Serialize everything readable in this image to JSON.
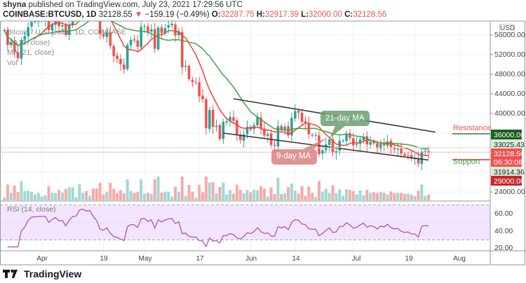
{
  "header": {
    "publisher": "shyna",
    "published_text": "published on TradingView.com, July 23, 2021 17:29:56 UTC",
    "symbol": "COINBASE:BTCUSD, 1D",
    "last": "32128.55",
    "change": "−159.19 (−0.49%)",
    "o_label": "O:",
    "o": "32287.75",
    "h_label": "H:",
    "h": "32917.39",
    "l_label": "L:",
    "l": "32000.00",
    "c_label": "C:",
    "c": "32128.56"
  },
  "legend": {
    "title": "Bitcoin / U.S. Dollar, 1D, COINBASE",
    "ma9": "MA (9, close)",
    "ma21": "MA (21, close)",
    "vol": "Vol"
  },
  "annotations": {
    "ma21": "21-day MA",
    "ma9": "9-day MA",
    "resistance": "Resistance",
    "support": "Support"
  },
  "price_axis": {
    "currency": "USD",
    "ticks": [
      "56000.00",
      "52000.00",
      "48000.00",
      "44000.00",
      "40000.00",
      "24000.00"
    ],
    "badges": {
      "resistance": "36000.00",
      "ma21": "33025.43",
      "last": "32128.56",
      "countdown": "06:30:08",
      "ma9": "31914.36",
      "support": "29000.00"
    }
  },
  "rsi": {
    "label": "RSI (14, close)",
    "ticks": [
      "60.00",
      "40.00",
      "20.00"
    ]
  },
  "time_axis": {
    "ticks": [
      "Apr",
      "19",
      "May",
      "17",
      "Jun",
      "14",
      "Jul",
      "19",
      "Aug"
    ]
  },
  "footer": {
    "brand": "TradingView"
  },
  "colors": {
    "up": "#26a69a",
    "down": "#ef5350",
    "ma9": "#f44336",
    "ma21": "#43a047",
    "rsi": "#ab47bc",
    "rsi_band": "#f3e5fe"
  },
  "chart_data": {
    "type": "candlestick",
    "start_date": "2021-03-21",
    "ylim": [
      22000,
      59000
    ],
    "closes": [
      57000,
      54000,
      54500,
      52500,
      51300,
      55000,
      55800,
      57600,
      58700,
      58800,
      58900,
      59000,
      59000,
      57000,
      58200,
      59000,
      57800,
      58000,
      56000,
      58100,
      59800,
      59900,
      63000,
      63500,
      62900,
      63200,
      61400,
      60000,
      56200,
      55700,
      56500,
      53800,
      51700,
      51100,
      50100,
      49000,
      54000,
      55000,
      54900,
      53600,
      57700,
      57800,
      56600,
      57200,
      53200,
      57500,
      56400,
      57400,
      58000,
      58300,
      55900,
      56700,
      49400,
      49700,
      47000,
      46400,
      46400,
      43500,
      42900,
      37000,
      40700,
      37300,
      37500,
      34800,
      38300,
      38400,
      39300,
      38500,
      35700,
      34600,
      35700,
      37300,
      36700,
      37600,
      39300,
      36900,
      35500,
      35800,
      33600,
      33400,
      37400,
      36700,
      37300,
      35500,
      39100,
      40500,
      40200,
      38300,
      38100,
      35800,
      35500,
      35600,
      31700,
      32500,
      33700,
      34700,
      32100,
      32300,
      34400,
      34500,
      35900,
      35000,
      33500,
      33800,
      34700,
      35300,
      33700,
      34200,
      33900,
      32900,
      33800,
      33500,
      34300,
      33100,
      32700,
      32800,
      31800,
      31400,
      31500,
      30800,
      30800,
      29800,
      32100,
      32300,
      32128
    ],
    "resistance": 36000,
    "support": 29000,
    "channel": {
      "upper": [
        [
          "2021-05-27",
          43000
        ],
        [
          "2021-07-25",
          36200
        ]
      ],
      "lower": [
        [
          "2021-05-24",
          36000
        ],
        [
          "2021-07-23",
          30500
        ]
      ]
    }
  }
}
